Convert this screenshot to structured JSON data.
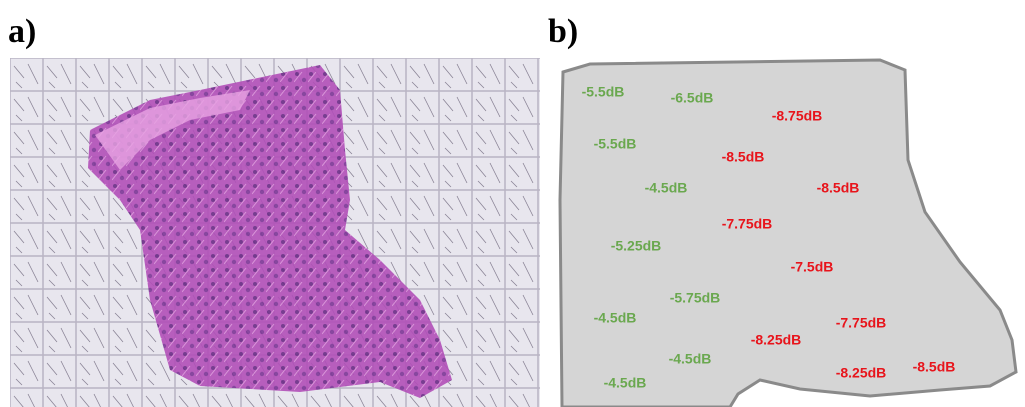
{
  "panels": [
    {
      "label": "a)"
    },
    {
      "label": "b)",
      "groups": [
        {
          "color": "#6aa84f",
          "labels": [
            "-5.5dB",
            "-6.5dB",
            "-5.5dB",
            "-4.5dB",
            "-5.25dB",
            "-5.75dB",
            "-4.5dB",
            "-4.5dB",
            "-4.5dB"
          ]
        },
        {
          "color": "#e8141b",
          "labels": [
            "-8.75dB",
            "-8.5dB",
            "-8.5dB",
            "-7.75dB",
            "-7.5dB",
            "-7.75dB",
            "-8.25dB",
            "-8.25dB",
            "-8.5dB"
          ]
        }
      ]
    }
  ]
}
